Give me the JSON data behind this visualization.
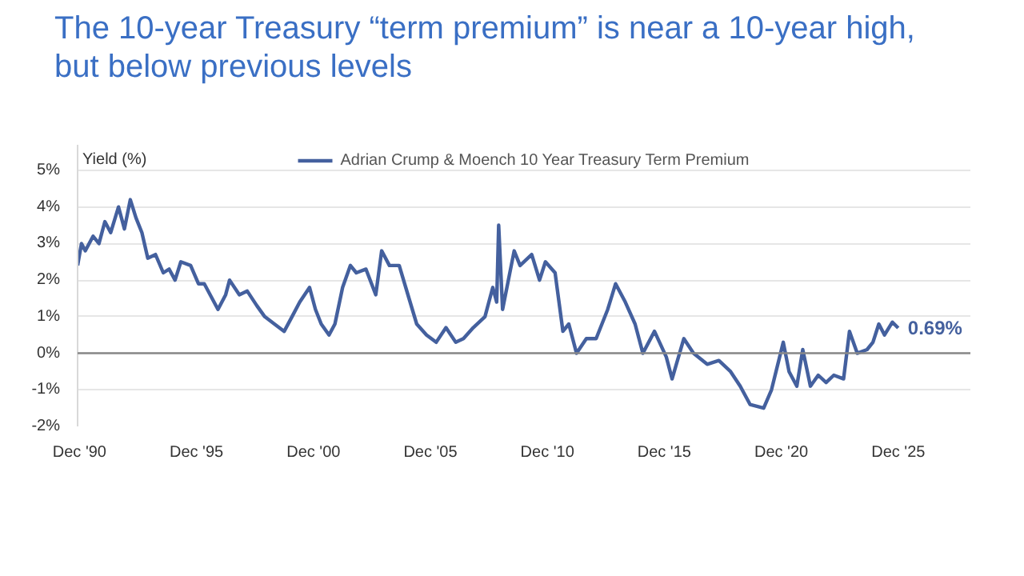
{
  "chart_data": {
    "type": "line",
    "title": "The 10-year Treasury “term premium” is near a 10-year high, but below previous levels",
    "ylabel": "Yield (%)",
    "x": [
      "1990-11",
      "1991-01",
      "1991-03",
      "1991-07",
      "1991-10",
      "1992-01",
      "1992-04",
      "1992-08",
      "1992-11",
      "1993-02",
      "1993-05",
      "1993-08",
      "1993-11",
      "1994-03",
      "1994-07",
      "1994-10",
      "1995-01",
      "1995-04",
      "1995-09",
      "1996-01",
      "1996-04",
      "1996-08",
      "1996-11",
      "1997-03",
      "1997-05",
      "1997-10",
      "1998-02",
      "1998-07",
      "1998-11",
      "1999-04",
      "1999-09",
      "2000-01",
      "2000-05",
      "2000-10",
      "2001-01",
      "2001-04",
      "2001-08",
      "2001-11",
      "2002-03",
      "2002-07",
      "2002-10",
      "2003-03",
      "2003-08",
      "2003-11",
      "2004-03",
      "2004-08",
      "2005-01",
      "2005-05",
      "2005-10",
      "2006-03",
      "2006-08",
      "2007-01",
      "2007-05",
      "2007-10",
      "2008-04",
      "2008-08",
      "2008-10",
      "2008-11",
      "2009-01",
      "2009-07",
      "2009-10",
      "2010-04",
      "2010-08",
      "2010-11",
      "2011-04",
      "2011-08",
      "2011-11",
      "2012-03",
      "2012-08",
      "2013-01",
      "2013-07",
      "2013-11",
      "2014-04",
      "2014-09",
      "2015-01",
      "2015-07",
      "2016-01",
      "2016-04",
      "2016-10",
      "2017-03",
      "2017-10",
      "2018-04",
      "2018-10",
      "2019-03",
      "2019-08",
      "2020-03",
      "2020-07",
      "2021-01",
      "2021-04",
      "2021-08",
      "2021-11",
      "2022-03",
      "2022-07",
      "2022-11",
      "2023-03",
      "2023-08",
      "2023-11",
      "2024-03",
      "2024-08",
      "2024-11",
      "2025-02",
      "2025-05",
      "2025-09",
      "2025-12"
    ],
    "series": [
      {
        "name": "Adrian Crump & Moench 10 Year Treasury Term Premium",
        "color": "#44609e",
        "values": [
          2.4,
          3.0,
          2.8,
          3.2,
          3.0,
          3.6,
          3.3,
          4.0,
          3.4,
          4.2,
          3.7,
          3.3,
          2.6,
          2.7,
          2.2,
          2.3,
          2.0,
          2.5,
          2.4,
          1.9,
          1.9,
          1.5,
          1.2,
          1.6,
          2.0,
          1.6,
          1.7,
          1.3,
          1.0,
          0.8,
          0.6,
          1.0,
          1.4,
          1.8,
          1.2,
          0.8,
          0.5,
          0.8,
          1.8,
          2.4,
          2.2,
          2.3,
          1.6,
          2.8,
          2.4,
          2.4,
          1.5,
          0.8,
          0.5,
          0.3,
          0.7,
          0.3,
          0.4,
          0.7,
          1.0,
          1.8,
          1.4,
          3.5,
          1.2,
          2.8,
          2.4,
          2.7,
          2.0,
          2.5,
          2.2,
          0.6,
          0.8,
          0.0,
          0.4,
          0.4,
          1.2,
          1.9,
          1.4,
          0.8,
          0.0,
          0.6,
          -0.1,
          -0.7,
          0.4,
          0.0,
          -0.3,
          -0.2,
          -0.5,
          -0.9,
          -1.4,
          -1.5,
          -1.0,
          0.3,
          -0.5,
          -0.9,
          0.1,
          -0.9,
          -0.6,
          -0.8,
          -0.6,
          -0.7,
          0.6,
          0.0,
          0.1,
          0.3,
          0.8,
          0.5,
          0.85,
          0.69
        ]
      }
    ],
    "annotations": [
      {
        "text": "0.69%",
        "x": "2025-12",
        "y": 0.69
      }
    ],
    "xlim": [
      "1990-11",
      "2029-01"
    ],
    "xticks": [
      {
        "value": "1990-12",
        "label": "Dec '90"
      },
      {
        "value": "1995-12",
        "label": "Dec '95"
      },
      {
        "value": "2000-12",
        "label": "Dec '00"
      },
      {
        "value": "2005-12",
        "label": "Dec '05"
      },
      {
        "value": "2010-12",
        "label": "Dec '10"
      },
      {
        "value": "2015-12",
        "label": "Dec '15"
      },
      {
        "value": "2020-12",
        "label": "Dec '20"
      },
      {
        "value": "2025-12",
        "label": "Dec '25"
      }
    ],
    "ylim": [
      -2,
      5.7
    ],
    "yticks": [
      {
        "value": -2,
        "label": "-2%"
      },
      {
        "value": -1,
        "label": "-1%"
      },
      {
        "value": 0,
        "label": "0%"
      },
      {
        "value": 1,
        "label": "1%"
      },
      {
        "value": 2,
        "label": "2%"
      },
      {
        "value": 3,
        "label": "3%"
      },
      {
        "value": 4,
        "label": "4%"
      },
      {
        "value": 5,
        "label": "5%"
      }
    ],
    "ref_lines": [
      {
        "axis": "y",
        "value": 0,
        "color": "#888888"
      }
    ],
    "grid": "y",
    "legend": "top",
    "marker": "none",
    "line_style": "solid"
  }
}
